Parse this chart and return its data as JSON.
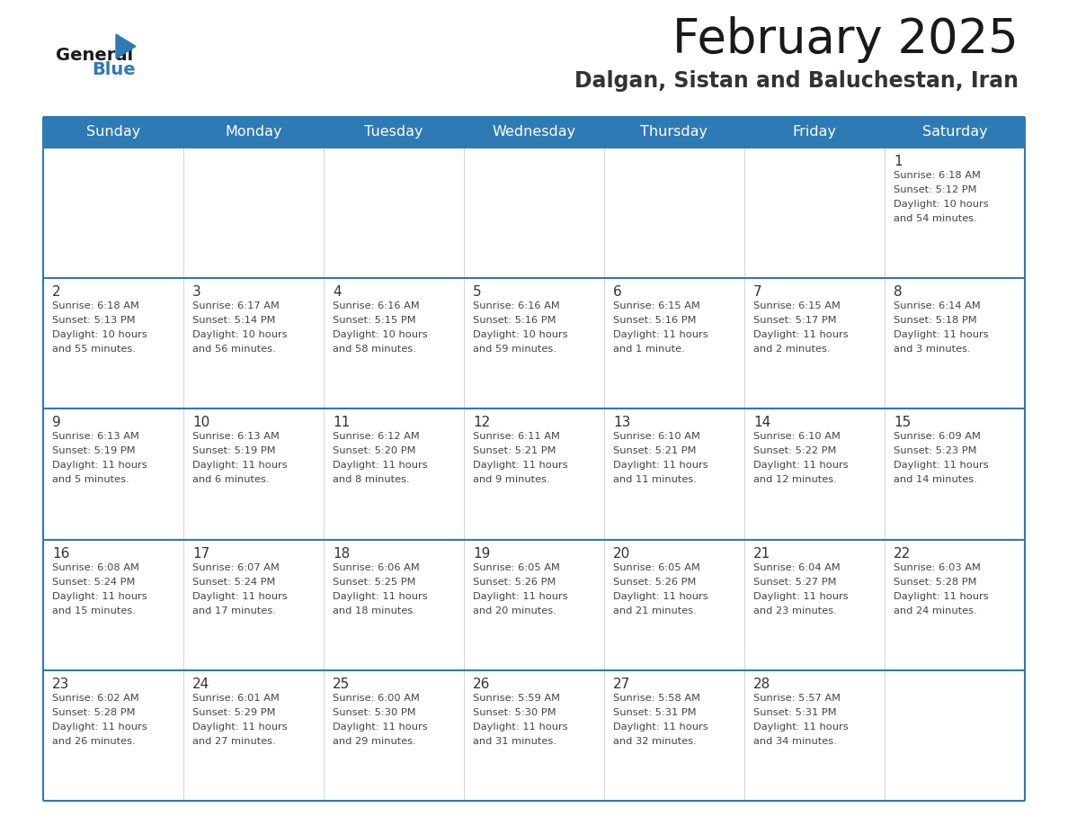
{
  "title": "February 2025",
  "subtitle": "Dalgan, Sistan and Baluchestan, Iran",
  "days_of_week": [
    "Sunday",
    "Monday",
    "Tuesday",
    "Wednesday",
    "Thursday",
    "Friday",
    "Saturday"
  ],
  "header_bg": "#2E7AB5",
  "header_text": "#FFFFFF",
  "cell_bg": "#FFFFFF",
  "row_sep_color": "#2E7AB5",
  "col_sep_color": "#CCCCCC",
  "text_color": "#444444",
  "day_num_color": "#333333",
  "calendar_data": [
    [
      null,
      null,
      null,
      null,
      null,
      null,
      {
        "day": 1,
        "sunrise": "6:18 AM",
        "sunset": "5:12 PM",
        "daylight": "10 hours\nand 54 minutes."
      }
    ],
    [
      {
        "day": 2,
        "sunrise": "6:18 AM",
        "sunset": "5:13 PM",
        "daylight": "10 hours\nand 55 minutes."
      },
      {
        "day": 3,
        "sunrise": "6:17 AM",
        "sunset": "5:14 PM",
        "daylight": "10 hours\nand 56 minutes."
      },
      {
        "day": 4,
        "sunrise": "6:16 AM",
        "sunset": "5:15 PM",
        "daylight": "10 hours\nand 58 minutes."
      },
      {
        "day": 5,
        "sunrise": "6:16 AM",
        "sunset": "5:16 PM",
        "daylight": "10 hours\nand 59 minutes."
      },
      {
        "day": 6,
        "sunrise": "6:15 AM",
        "sunset": "5:16 PM",
        "daylight": "11 hours\nand 1 minute."
      },
      {
        "day": 7,
        "sunrise": "6:15 AM",
        "sunset": "5:17 PM",
        "daylight": "11 hours\nand 2 minutes."
      },
      {
        "day": 8,
        "sunrise": "6:14 AM",
        "sunset": "5:18 PM",
        "daylight": "11 hours\nand 3 minutes."
      }
    ],
    [
      {
        "day": 9,
        "sunrise": "6:13 AM",
        "sunset": "5:19 PM",
        "daylight": "11 hours\nand 5 minutes."
      },
      {
        "day": 10,
        "sunrise": "6:13 AM",
        "sunset": "5:19 PM",
        "daylight": "11 hours\nand 6 minutes."
      },
      {
        "day": 11,
        "sunrise": "6:12 AM",
        "sunset": "5:20 PM",
        "daylight": "11 hours\nand 8 minutes."
      },
      {
        "day": 12,
        "sunrise": "6:11 AM",
        "sunset": "5:21 PM",
        "daylight": "11 hours\nand 9 minutes."
      },
      {
        "day": 13,
        "sunrise": "6:10 AM",
        "sunset": "5:21 PM",
        "daylight": "11 hours\nand 11 minutes."
      },
      {
        "day": 14,
        "sunrise": "6:10 AM",
        "sunset": "5:22 PM",
        "daylight": "11 hours\nand 12 minutes."
      },
      {
        "day": 15,
        "sunrise": "6:09 AM",
        "sunset": "5:23 PM",
        "daylight": "11 hours\nand 14 minutes."
      }
    ],
    [
      {
        "day": 16,
        "sunrise": "6:08 AM",
        "sunset": "5:24 PM",
        "daylight": "11 hours\nand 15 minutes."
      },
      {
        "day": 17,
        "sunrise": "6:07 AM",
        "sunset": "5:24 PM",
        "daylight": "11 hours\nand 17 minutes."
      },
      {
        "day": 18,
        "sunrise": "6:06 AM",
        "sunset": "5:25 PM",
        "daylight": "11 hours\nand 18 minutes."
      },
      {
        "day": 19,
        "sunrise": "6:05 AM",
        "sunset": "5:26 PM",
        "daylight": "11 hours\nand 20 minutes."
      },
      {
        "day": 20,
        "sunrise": "6:05 AM",
        "sunset": "5:26 PM",
        "daylight": "11 hours\nand 21 minutes."
      },
      {
        "day": 21,
        "sunrise": "6:04 AM",
        "sunset": "5:27 PM",
        "daylight": "11 hours\nand 23 minutes."
      },
      {
        "day": 22,
        "sunrise": "6:03 AM",
        "sunset": "5:28 PM",
        "daylight": "11 hours\nand 24 minutes."
      }
    ],
    [
      {
        "day": 23,
        "sunrise": "6:02 AM",
        "sunset": "5:28 PM",
        "daylight": "11 hours\nand 26 minutes."
      },
      {
        "day": 24,
        "sunrise": "6:01 AM",
        "sunset": "5:29 PM",
        "daylight": "11 hours\nand 27 minutes."
      },
      {
        "day": 25,
        "sunrise": "6:00 AM",
        "sunset": "5:30 PM",
        "daylight": "11 hours\nand 29 minutes."
      },
      {
        "day": 26,
        "sunrise": "5:59 AM",
        "sunset": "5:30 PM",
        "daylight": "11 hours\nand 31 minutes."
      },
      {
        "day": 27,
        "sunrise": "5:58 AM",
        "sunset": "5:31 PM",
        "daylight": "11 hours\nand 32 minutes."
      },
      {
        "day": 28,
        "sunrise": "5:57 AM",
        "sunset": "5:31 PM",
        "daylight": "11 hours\nand 34 minutes."
      },
      null
    ]
  ]
}
